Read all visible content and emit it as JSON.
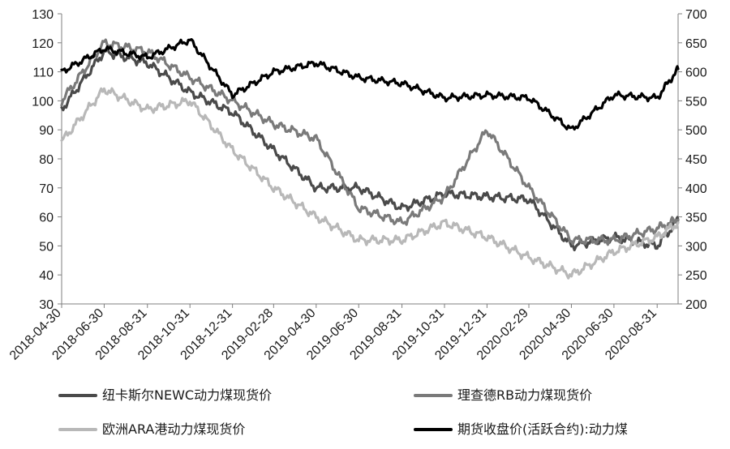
{
  "chart_data": {
    "type": "line",
    "title": "",
    "xlabel": "",
    "ylabel": "",
    "ylim": [
      30,
      130
    ],
    "y2lim": [
      200,
      700
    ],
    "yticks": [
      30,
      40,
      50,
      60,
      70,
      80,
      90,
      100,
      110,
      120,
      130
    ],
    "y2ticks": [
      200,
      250,
      300,
      350,
      400,
      450,
      500,
      550,
      600,
      650,
      700
    ],
    "grid": false,
    "legend_position": "bottom",
    "x": [
      "2018-04-30",
      "2018-06-30",
      "2018-08-31",
      "2018-10-31",
      "2018-12-31",
      "2019-02-28",
      "2019-04-30",
      "2019-06-30",
      "2019-08-31",
      "2019-10-31",
      "2019-12-31",
      "2020-02-29",
      "2020-04-30",
      "2020-06-30",
      "2020-08-31",
      "2020-09-30"
    ],
    "xticks": [
      "2018-04-30",
      "2018-06-30",
      "2018-08-31",
      "2018-10-31",
      "2018-12-31",
      "2019-02-28",
      "2019-04-30",
      "2019-06-30",
      "2019-08-31",
      "2019-10-31",
      "2019-12-31",
      "2020-02-29",
      "2020-04-30",
      "2020-06-30",
      "2020-08-31"
    ],
    "series": [
      {
        "name": "纽卡斯尔NEWC动力煤现货价",
        "color": "#4a4a4a",
        "axis": "left",
        "values": [
          97,
          117,
          113,
          103,
          96,
          83,
          70,
          70,
          63,
          68,
          67,
          66,
          50,
          53,
          50,
          59
        ]
      },
      {
        "name": "理查德RB动力煤现货价",
        "color": "#7a7a7a",
        "axis": "left",
        "values": [
          100,
          120,
          117,
          108,
          100,
          92,
          87,
          63,
          58,
          67,
          90,
          70,
          52,
          52,
          56,
          59
        ]
      },
      {
        "name": "欧洲ARA港动力煤现货价",
        "color": "#b8b8b8",
        "axis": "left",
        "values": [
          86,
          104,
          97,
          100,
          83,
          70,
          60,
          52,
          52,
          58,
          53,
          46,
          40,
          48,
          53,
          58
        ]
      },
      {
        "name": "期货收盘价(活跃合约):动力煤",
        "color": "#000000",
        "axis": "right",
        "values": [
          600,
          640,
          625,
          655,
          560,
          600,
          615,
          590,
          580,
          555,
          560,
          555,
          500,
          560,
          555,
          605
        ]
      }
    ]
  }
}
